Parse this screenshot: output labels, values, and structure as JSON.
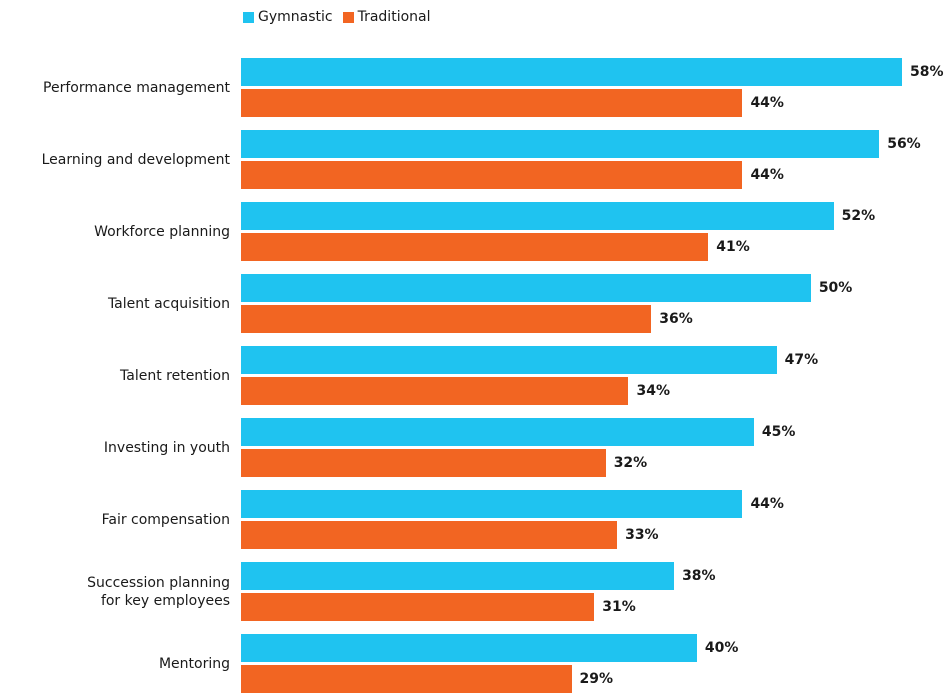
{
  "chart_data": {
    "type": "bar",
    "orientation": "horizontal",
    "categories": [
      "Performance management",
      "Learning and development",
      "Workforce planning",
      "Talent acquisition",
      "Talent retention",
      "Investing in youth",
      "Fair compensation",
      "Succession planning\nfor key employees",
      "Mentoring"
    ],
    "series": [
      {
        "name": "Gymnastic",
        "color": "#1fc3f0",
        "values": [
          58,
          56,
          52,
          50,
          47,
          45,
          44,
          38,
          40
        ],
        "value_labels": [
          "58%",
          "56%",
          "52%",
          "50%",
          "47%",
          "45%",
          "44%",
          "38%",
          "40%"
        ]
      },
      {
        "name": "Traditional",
        "color": "#f26522",
        "values": [
          44,
          44,
          41,
          36,
          34,
          32,
          33,
          31,
          29
        ],
        "value_labels": [
          "44%",
          "44%",
          "41%",
          "36%",
          "34%",
          "32%",
          "33%",
          "31%",
          "29%"
        ]
      }
    ],
    "legend": "top"
  }
}
